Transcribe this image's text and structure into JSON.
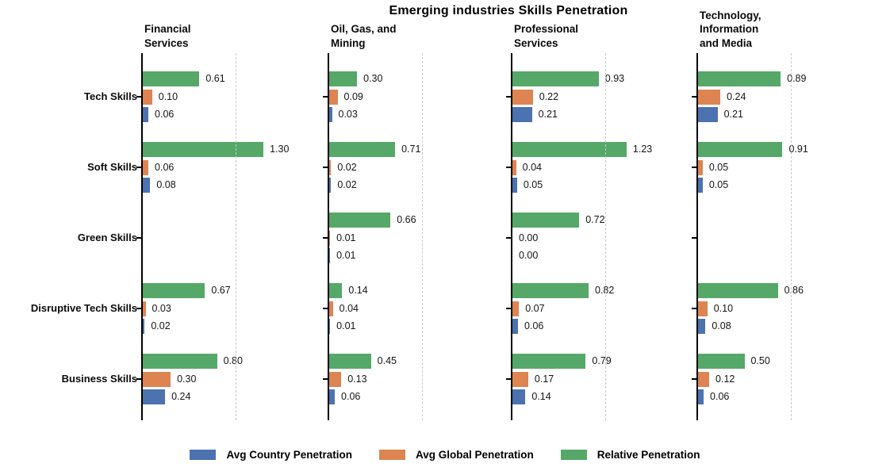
{
  "chart_data": {
    "type": "bar",
    "orientation": "horizontal",
    "title": "Emerging industries Skills Penetration",
    "categories": [
      "Tech Skills",
      "Soft Skills",
      "Green Skills",
      "Disruptive Tech Skills",
      "Business Skills"
    ],
    "series_order_top_to_bottom": [
      "relative",
      "global",
      "country"
    ],
    "legend": [
      {
        "key": "country",
        "label": "Avg Country Penetration",
        "color": "#4C72B0"
      },
      {
        "key": "global",
        "label": "Avg Global Penetration",
        "color": "#DD8452"
      },
      {
        "key": "relative",
        "label": "Relative Penetration",
        "color": "#55A868"
      }
    ],
    "gridline_x": 1.0,
    "xlim": [
      0,
      1.38
    ],
    "value_label_decimals": 2,
    "panels": [
      {
        "title_lines": [
          "Financial",
          "Services"
        ],
        "series": {
          "relative": [
            0.61,
            1.3,
            null,
            0.67,
            0.8
          ],
          "global": [
            0.1,
            0.06,
            null,
            0.03,
            0.3
          ],
          "country": [
            0.06,
            0.08,
            null,
            0.02,
            0.24
          ]
        }
      },
      {
        "title_lines": [
          "Oil, Gas, and",
          "Mining"
        ],
        "series": {
          "relative": [
            0.3,
            0.71,
            0.66,
            0.14,
            0.45
          ],
          "global": [
            0.09,
            0.02,
            0.01,
            0.04,
            0.13
          ],
          "country": [
            0.03,
            0.02,
            0.01,
            0.01,
            0.06
          ]
        }
      },
      {
        "title_lines": [
          "Professional",
          "Services"
        ],
        "series": {
          "relative": [
            0.93,
            1.23,
            0.72,
            0.82,
            0.79
          ],
          "global": [
            0.22,
            0.04,
            0.0,
            0.07,
            0.17
          ],
          "country": [
            0.21,
            0.05,
            0.0,
            0.06,
            0.14
          ]
        }
      },
      {
        "title_lines": [
          "Technology,",
          "Information",
          "and Media"
        ],
        "series": {
          "relative": [
            0.89,
            0.91,
            null,
            0.86,
            0.5
          ],
          "global": [
            0.24,
            0.05,
            null,
            0.1,
            0.12
          ],
          "country": [
            0.21,
            0.05,
            null,
            0.08,
            0.06
          ]
        }
      }
    ]
  }
}
